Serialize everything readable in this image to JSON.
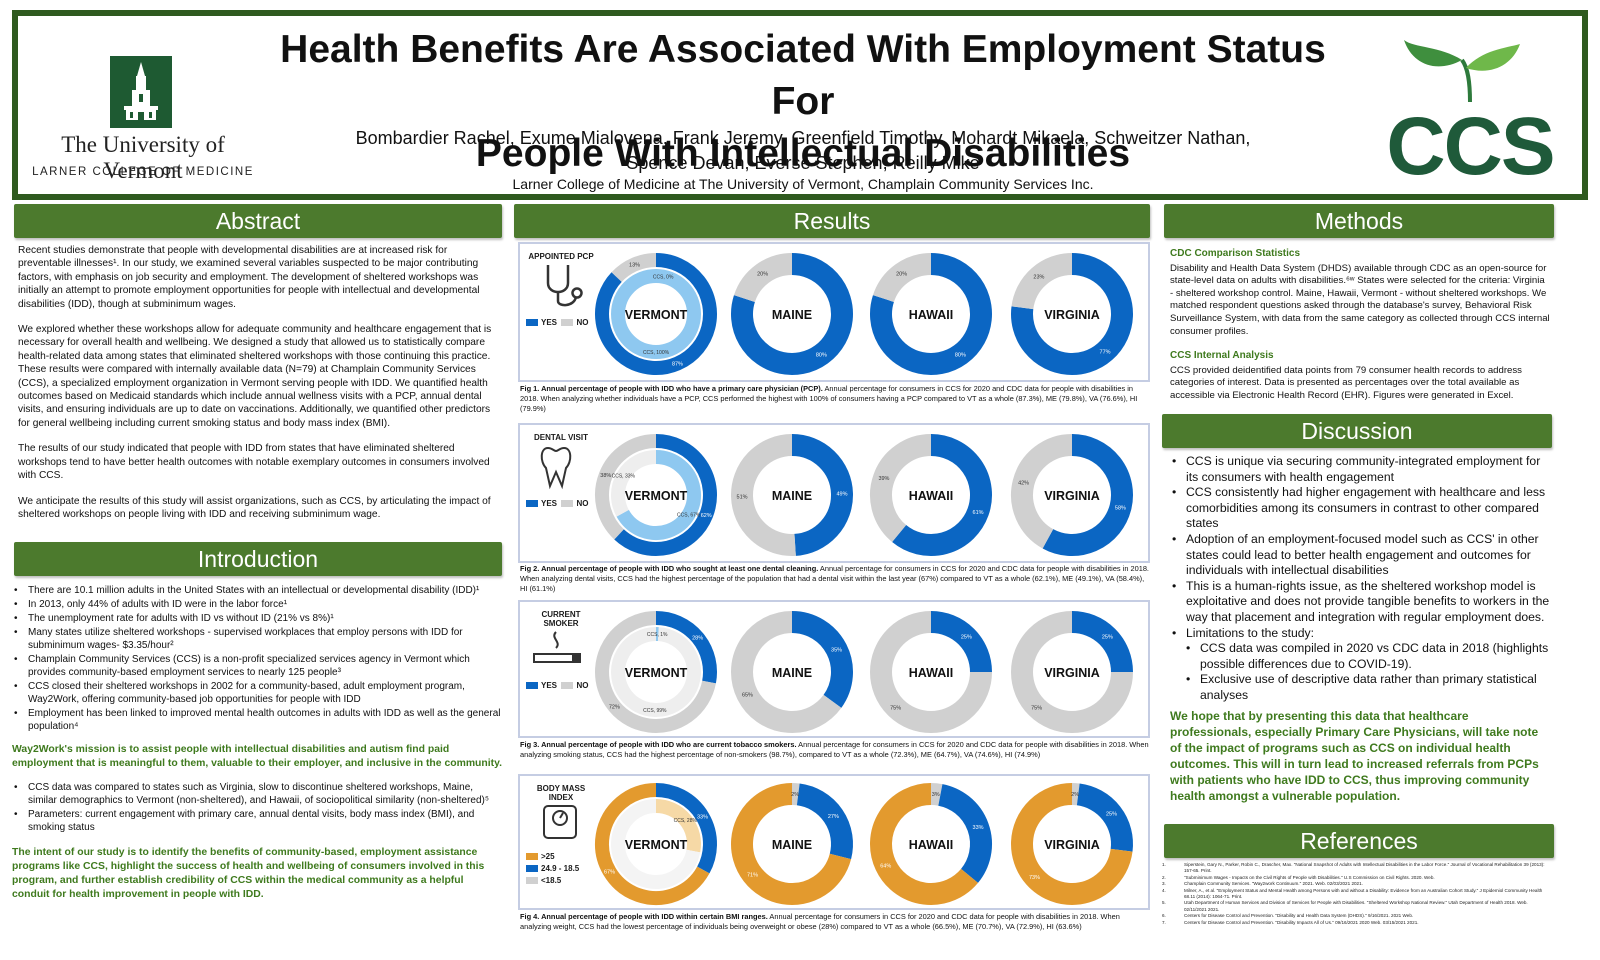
{
  "header": {
    "title_line1": "Health Benefits Are Associated With Employment Status For",
    "title_line2": "People With Intellectual Disabilities",
    "authors_line1": "Bombardier Rachel, Exume Mialovena, Frank Jeremy, Greenfield Timothy, Mohardt Mikaela, Schweitzer Nathan,",
    "authors_line2": "Spence Devan, Everse Stephen, Reilly Mike",
    "affiliation": "Larner College of Medicine at The University of Vermont, Champlain Community Services Inc.",
    "uvm_name": "The University of Vermont",
    "uvm_sub": "LARNER COLLEGE OF MEDICINE",
    "ccs_logo": "CCS"
  },
  "colors": {
    "green": "#4c7a2d",
    "dark_green": "#2f5a1f",
    "blue": "#0b66c3",
    "light_blue": "#8ec8f0",
    "gray": "#d0d0d0",
    "orange": "#e39a2e",
    "light_orange": "#f6d9a6"
  },
  "abstract": {
    "heading": "Abstract",
    "p1": "Recent studies demonstrate that people with developmental disabilities are at increased risk for preventable illnesses¹. In our study, we examined several variables suspected to be major contributing factors, with emphasis on job security and employment. The development of sheltered workshops was initially an attempt to promote employment opportunities for people with intellectual and developmental disabilities (IDD), though at subminimum wages.",
    "p2": "We explored whether these workshops allow for adequate community and healthcare engagement that is necessary for overall health and wellbeing. We designed a study that allowed us to statistically compare health-related data among states that eliminated sheltered workshops with those continuing this practice. These results were compared with internally available data (N=79) at Champlain Community Services (CCS), a specialized employment organization in Vermont serving people with IDD. We quantified health outcomes based on Medicaid standards which include annual wellness visits with a PCP, annual dental visits, and ensuring individuals are up to date on vaccinations. Additionally, we quantified other predictors for general wellbeing including current smoking status and body mass index (BMI).",
    "p3": "The results of our study indicated that people with IDD from states that have eliminated sheltered workshops tend to have better health outcomes with notable exemplary outcomes in consumers involved with CCS.",
    "p4": "We anticipate the results of this study will assist organizations, such as CCS, by articulating the impact of sheltered workshops on people living with IDD and receiving subminimum wage."
  },
  "introduction": {
    "heading": "Introduction",
    "bullets1": [
      "There are 10.1 million adults in the United States with an intellectual or developmental disability (IDD)¹",
      "In 2013, only 44% of adults with ID were in the labor force¹",
      "The unemployment rate for adults with ID vs without ID (21% vs 8%)¹",
      "Many states utilize sheltered workshops - supervised workplaces that employ persons with IDD for subminimum wages- $3.35/hour²",
      " Champlain Community Services (CCS) is a non-profit specialized services agency in Vermont which provides community-based employment services to nearly 125 people³",
      "CCS closed their sheltered workshops in 2002 for a community-based, adult employment program, Way2Work, offering community-based job opportunities for people with IDD",
      "Employment has been linked to improved mental health outcomes in adults with IDD as well as the general population⁴"
    ],
    "mission": "Way2Work's mission is to assist people with intellectual disabilities and autism find paid employment that is meaningful to them, valuable to their employer, and inclusive in the community.",
    "bullets2": [
      "CCS data was compared to states such as Virginia, slow to discontinue sheltered workshops, Maine, similar demographics to Vermont (non-sheltered), and Hawaii, of sociopolitical similarity (non-sheltered)⁵",
      "Parameters: current engagement with primary care, annual dental visits, body mass index (BMI), and smoking status"
    ],
    "intent": "The intent of our study is to identify the benefits of community-based, employment assistance programs like CCS, highlight the success of health and wellbeing of consumers involved in this program, and further establish credibility of CCS within the medical community as a helpful conduit for health improvement in people with IDD."
  },
  "results": {
    "heading": "Results",
    "states": [
      "VERMONT",
      "MAINE",
      "HAWAII",
      "VIRGINIA"
    ],
    "figures": [
      {
        "icon_label": "APPOINTED PCP",
        "legend": [
          "YES",
          "NO"
        ],
        "caption_bold": "Fig 1. Annual percentage of people with IDD who have a primary care physician (PCP).",
        "caption": " Annual percentage for consumers in CCS for 2020 and CDC data for people with disabilities in 2018. When analyzing whether individuals have a PCP, CCS performed the highest with 100% of consumers having a PCP compared to VT as a whole (87.3%), ME (79.8%), VA (76.6%), HI (79.9%)",
        "vermont_yes": 87,
        "vermont_no": 13,
        "ccs_yes": 100,
        "ccs_no": 0,
        "others": [
          {
            "yes": 80,
            "no": 20
          },
          {
            "yes": 80,
            "no": 20
          },
          {
            "yes": 77,
            "no": 23
          }
        ],
        "labels": {
          "vt_yes": "87%",
          "vt_no": "13%",
          "ccs_yes": "CCS, 100%",
          "ccs_no": "CCS, 0%",
          "me_yes": "80%",
          "me_no": "20%",
          "hi_yes": "80%",
          "hi_no": "20%",
          "va_yes": "77%",
          "va_no": "23%"
        }
      },
      {
        "icon_label": "DENTAL VISIT",
        "legend": [
          "YES",
          "NO"
        ],
        "caption_bold": "Fig 2. Annual percentage of people with IDD who sought at least one dental cleaning.",
        "caption": " Annual percentage for consumers in CCS for 2020 and CDC data for people with disabilities in 2018. When analyzing dental visits, CCS had the highest percentage of the population that had a dental visit within the last year (67%) compared to VT as a whole (62.1%), ME (49.1%), VA (58.4%), HI (61.1%)",
        "vermont_yes": 62,
        "vermont_no": 38,
        "ccs_yes": 67,
        "ccs_no": 33,
        "others": [
          {
            "yes": 49,
            "no": 51
          },
          {
            "yes": 61,
            "no": 39
          },
          {
            "yes": 58,
            "no": 42
          }
        ],
        "labels": {
          "vt_yes": "62%",
          "vt_no": "38%",
          "ccs_yes": "CCS, 67%",
          "ccs_no": "CCS, 33%",
          "me_yes": "49%",
          "me_no": "51%",
          "hi_yes": "61%",
          "hi_no": "39%",
          "va_yes": "58%",
          "va_no": "42%"
        }
      },
      {
        "icon_label": "CURRENT SMOKER",
        "legend": [
          "YES",
          "NO"
        ],
        "caption_bold": "Fig 3. Annual percentage of people with IDD who are current tobacco smokers.",
        "caption": " Annual percentage for consumers in CCS for 2020 and CDC data for people with disabilities in 2018. When analyzing smoking status, CCS had the highest percentage of non-smokers (98.7%), compared to VT as a whole (72.3%), ME (64.7%), VA (74.6%), HI (74.9%)",
        "vermont_yes": 28,
        "vermont_no": 72,
        "ccs_yes": 1,
        "ccs_no": 99,
        "others": [
          {
            "yes": 35,
            "no": 65
          },
          {
            "yes": 25,
            "no": 75
          },
          {
            "yes": 25,
            "no": 75
          }
        ],
        "labels": {
          "vt_yes": "28%",
          "vt_no": "72%",
          "ccs_yes": "CCS, 1%",
          "ccs_no": "CCS, 99%",
          "me_yes": "35%",
          "me_no": "65%",
          "hi_yes": "25%",
          "hi_no": "75%",
          "va_yes": "25%",
          "va_no": "75%"
        }
      },
      {
        "icon_label": "BODY MASS INDEX",
        "legend": [
          ">25",
          "24.9 - 18.5",
          "<18.5"
        ],
        "caption_bold": "Fig 4. Annual percentage of people with IDD within certain BMI ranges.",
        "caption": " Annual percentage for consumers in CCS for 2020 and CDC data for people with disabilities in 2018. When analyzing weight, CCS had the lowest percentage of individuals being overweight or obese (28%) compared to VT as a whole (66.5%), ME (70.7%), VA (72.9%), HI (63.6%)",
        "vermont_over": 67,
        "vermont_normal": 33,
        "ccs_over": 28,
        "others": [
          {
            "over": 71,
            "normal": 27,
            "under": 2
          },
          {
            "over": 64,
            "normal": 33,
            "under": 3
          },
          {
            "over": 73,
            "normal": 25,
            "under": 2
          }
        ],
        "labels": {
          "vt_over": "67%",
          "vt_normal": "33%",
          "ccs": "CCS, 28%",
          "me_over": "71%",
          "me_normal": "27%",
          "me_under": "2%",
          "hi_over": "64%",
          "hi_normal": "33%",
          "hi_under": "3%",
          "va_over": "73%",
          "va_normal": "25%",
          "va_under": "2%"
        }
      }
    ]
  },
  "methods": {
    "heading": "Methods",
    "sub1": "CDC Comparison Statistics",
    "p1": "Disability and Health Data System (DHDS) available through CDC as an open-source for state-level data on adults with disabilities.⁶ʷ States were selected for the criteria: Virginia - sheltered workshop control. Maine, Hawaii, Vermont - without sheltered workshops. We matched respondent questions asked through the database's survey, Behavioral Risk Surveillance System, with data from the same category as collected through CCS internal consumer profiles.",
    "sub2": "CCS Internal Analysis",
    "p2": "CCS provided deidentified data points from 79 consumer health records to address categories of interest. Data is presented as percentages over the total available as accessible via Electronic Health Record (EHR). Figures were generated in Excel."
  },
  "discussion": {
    "heading": "Discussion",
    "bullets": [
      "CCS is unique via securing community-integrated employment for its consumers with health engagement",
      "CCS consistently had higher engagement with healthcare and less comorbidities among its consumers in contrast to other compared states",
      "Adoption of an employment-focused model such as CCS' in other states could lead to better health engagement and outcomes for individuals with intellectual disabilities",
      "This is a human-rights issue, as the sheltered workshop model is exploitative and does not provide tangible benefits to workers in the way that placement and integration with regular employment does.",
      "Limitations to the study:"
    ],
    "sub_bullets": [
      "CCS data was compiled in 2020 vs CDC data in 2018 (highlights possible differences due to COVID-19).",
      "Exclusive use of descriptive data rather than primary statistical analyses"
    ],
    "conclusion": "We hope that by presenting this data that healthcare professionals, especially Primary Care Physicians, will take note of the impact of programs such as CCS on individual health outcomes. This will in turn lead to increased referrals from PCPs with patients who have IDD to CCS, thus improving community health amongst a vulnerable population."
  },
  "references": {
    "heading": "References",
    "items": [
      "Siperstein, Gary N., Parker, Robin C., Drascher, Max. \"National Snapshot of Adults with Intellectual Disabilities in the Labor Force.\" Journal of Vocational Rehabilitation 39 (2013): 157-65. Print.",
      "\"Subminimum Wages - Impacts on the Civil Rights of People with Disabilities.\" U.S Commission on Civil Rights. 2020. Web.",
      "Champlain Community Services. \"Way2work Continuum.\" 2021. Web. 02/03/2021 2021.",
      "Milner, A., et al. \"Employment Status and Mental Health among Persons with and without a Disability: Evidence from an Australian Cohort Study.\" J Epidemiol Community Health 68.11 (2014): 1064-71. Print.",
      "Utah Department of Human Services and Division of Services for People with Disabilities. \"Sheltered Workshop National Review.\" Utah Department of Health 2018. Web. 02/11/2021 2021.",
      "Centers for Disease Control and Prevention. \"Disability and Health Data System (DHDS).\" 9/16/2021. 2021 Web.",
      "Centers for Disease Control and Prevention. \"Disability Impacts All of Us.\" 09/16/2021 2020 Web. 03/15/2021 2021."
    ]
  }
}
